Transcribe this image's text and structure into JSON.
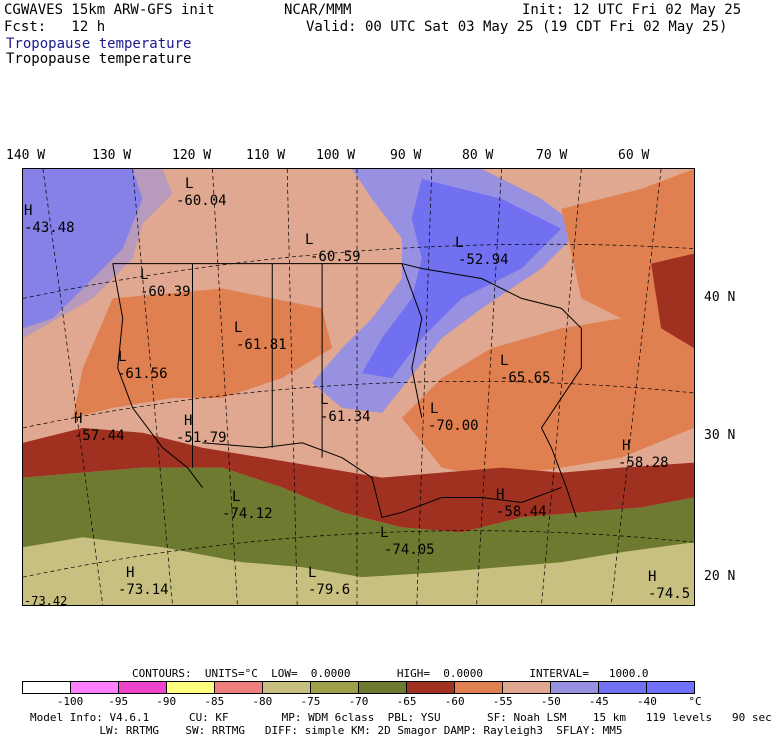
{
  "header": {
    "model": "CGWAVES 15km ARW-GFS init",
    "org": "NCAR/MMM",
    "init": "Init: 12 UTC Fri 02 May 25",
    "fcst": "Fcst:   12 h",
    "valid": "Valid: 00 UTC Sat 03 May 25 (19 CDT Fri 02 May 25)",
    "field_title_1": "Tropopause temperature",
    "field_title_2": "Tropopause temperature"
  },
  "axes": {
    "longitudes": [
      "140 W",
      "130 W",
      "120 W",
      "110 W",
      "100 W",
      "90 W",
      "80 W",
      "70 W",
      "60 W"
    ],
    "latitudes": [
      "40 N",
      "30 N",
      "20 N"
    ]
  },
  "labels": [
    {
      "letter": "H",
      "value": "-43.48"
    },
    {
      "letter": "L",
      "value": "-60.04"
    },
    {
      "letter": "L",
      "value": "-60.59"
    },
    {
      "letter": "L",
      "value": "-52.94"
    },
    {
      "letter": "L",
      "value": "-60.39"
    },
    {
      "letter": "L",
      "value": "-61.81"
    },
    {
      "letter": "L",
      "value": "-61.56"
    },
    {
      "letter": "L",
      "value": "-61.34"
    },
    {
      "letter": "L",
      "value": "-65.65"
    },
    {
      "letter": "H",
      "value": "-57.44"
    },
    {
      "letter": "H",
      "value": "-51.79"
    },
    {
      "letter": "L",
      "value": "-70.00"
    },
    {
      "letter": "H",
      "value": "-58.28"
    },
    {
      "letter": "L",
      "value": "-74.12"
    },
    {
      "letter": "H",
      "value": "-58.44"
    },
    {
      "letter": "L",
      "value": "-74.05"
    },
    {
      "letter": "H",
      "value": "-73.14"
    },
    {
      "letter": "L",
      "value": "-79.6"
    },
    {
      "letter": "H",
      "value": "-74.5"
    },
    {
      "letter": "",
      "value": "-73.42"
    }
  ],
  "contours": {
    "text": "CONTOURS:  UNITS=°C  LOW=  0.0000       HIGH=  0.0000       INTERVAL=   1000.0"
  },
  "scale": {
    "colors": [
      "#ffffff",
      "#ff80ff",
      "#ee44cc",
      "#ffff80",
      "#f08080",
      "#c8c080",
      "#9ea04a",
      "#6e7a30",
      "#a03020",
      "#e08050",
      "#e0a890",
      "#9890e0",
      "#7070f0",
      "#7070ff"
    ],
    "ticks": [
      "-100",
      "-95",
      "-90",
      "-85",
      "-80",
      "-75",
      "-70",
      "-65",
      "-60",
      "-55",
      "-50",
      "-45",
      "-40",
      "°C"
    ]
  },
  "footer": {
    "line1": "Model Info: V4.6.1      CU: KF        MP: WDM 6class  PBL: YSU       SF: Noah LSM    15 km   119 levels   90 sec",
    "line2": "               LW: RRTMG    SW: RRTMG   DIFF: simple KM: 2D Smagor DAMP: Rayleigh3  SFLAY: MM5"
  }
}
